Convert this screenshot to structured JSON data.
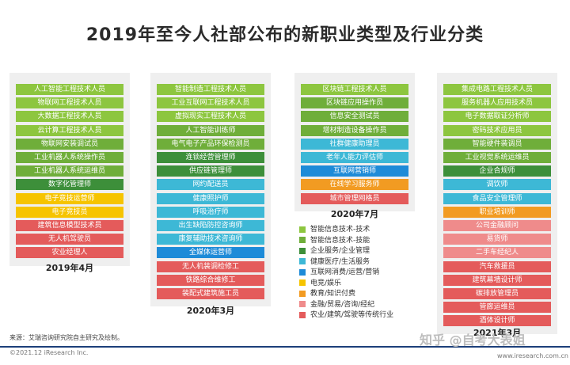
{
  "title": "2019年至今人社部公布的新职业类型及行业分类",
  "colors": {
    "智能信息技术-技术": "#8dc63f",
    "智能信息技术-技能": "#6fae3a",
    "企业服务/企业管理": "#3d8f3a",
    "健康医疗/生活服务": "#3db8d6",
    "互联网消费/运营/营销": "#1e8bd8",
    "电竞/娱乐": "#f6c400",
    "教育/知识付费": "#f29b22",
    "金融/贸易/咨询/经纪": "#ef8b8b",
    "农业/建筑/驾驶等传统行业": "#e45b5b"
  },
  "chart_data": [
    {
      "label": "2019年4月",
      "items": [
        {
          "name": "人工智能工程技术人员",
          "cat": "智能信息技术-技术"
        },
        {
          "name": "物联网工程技术人员",
          "cat": "智能信息技术-技术"
        },
        {
          "name": "大数据工程技术人员",
          "cat": "智能信息技术-技术"
        },
        {
          "name": "云计算工程技术人员",
          "cat": "智能信息技术-技术"
        },
        {
          "name": "物联网安装调试员",
          "cat": "智能信息技术-技能"
        },
        {
          "name": "工业机器人系统操作员",
          "cat": "智能信息技术-技能"
        },
        {
          "name": "工业机器人系统运维员",
          "cat": "智能信息技术-技能"
        },
        {
          "name": "数字化管理师",
          "cat": "企业服务/企业管理"
        },
        {
          "name": "电子竞技运营师",
          "cat": "电竞/娱乐"
        },
        {
          "name": "电子竞技员",
          "cat": "电竞/娱乐"
        },
        {
          "name": "建筑信息模型技术员",
          "cat": "农业/建筑/驾驶等传统行业"
        },
        {
          "name": "无人机驾驶员",
          "cat": "农业/建筑/驾驶等传统行业"
        },
        {
          "name": "农业经理人",
          "cat": "农业/建筑/驾驶等传统行业"
        }
      ]
    },
    {
      "label": "2020年3月",
      "items": [
        {
          "name": "智能制造工程技术人员",
          "cat": "智能信息技术-技术"
        },
        {
          "name": "工业互联网工程技术人员",
          "cat": "智能信息技术-技术"
        },
        {
          "name": "虚拟现实工程技术人员",
          "cat": "智能信息技术-技术"
        },
        {
          "name": "人工智能训练师",
          "cat": "智能信息技术-技能"
        },
        {
          "name": "电气电子产品环保检测员",
          "cat": "智能信息技术-技能"
        },
        {
          "name": "连锁经营管理师",
          "cat": "企业服务/企业管理"
        },
        {
          "name": "供应链管理师",
          "cat": "企业服务/企业管理"
        },
        {
          "name": "网约配送员",
          "cat": "健康医疗/生活服务"
        },
        {
          "name": "健康照护师",
          "cat": "健康医疗/生活服务"
        },
        {
          "name": "呼吸治疗师",
          "cat": "健康医疗/生活服务"
        },
        {
          "name": "出生缺陷防控咨询师",
          "cat": "健康医疗/生活服务"
        },
        {
          "name": "康复辅助技术咨询师",
          "cat": "健康医疗/生活服务"
        },
        {
          "name": "全媒体运营师",
          "cat": "互联网消费/运营/营销"
        },
        {
          "name": "无人机装调检修工",
          "cat": "农业/建筑/驾驶等传统行业"
        },
        {
          "name": "铁路综合维修工",
          "cat": "农业/建筑/驾驶等传统行业"
        },
        {
          "name": "装配式建筑施工员",
          "cat": "农业/建筑/驾驶等传统行业"
        }
      ]
    },
    {
      "label": "2020年7月",
      "items": [
        {
          "name": "区块链工程技术人员",
          "cat": "智能信息技术-技术"
        },
        {
          "name": "区块链应用操作员",
          "cat": "智能信息技术-技能"
        },
        {
          "name": "信息安全测试员",
          "cat": "智能信息技术-技能"
        },
        {
          "name": "增材制造设备操作员",
          "cat": "智能信息技术-技能"
        },
        {
          "name": "社群健康助理员",
          "cat": "健康医疗/生活服务"
        },
        {
          "name": "老年人能力评估师",
          "cat": "健康医疗/生活服务"
        },
        {
          "name": "互联网营销师",
          "cat": "互联网消费/运营/营销"
        },
        {
          "name": "在线学习服务师",
          "cat": "教育/知识付费"
        },
        {
          "name": "城市管理网格员",
          "cat": "农业/建筑/驾驶等传统行业"
        }
      ]
    },
    {
      "label": "2021年3月",
      "items": [
        {
          "name": "集成电路工程技术人员",
          "cat": "智能信息技术-技术"
        },
        {
          "name": "服务机器人应用技术员",
          "cat": "智能信息技术-技术"
        },
        {
          "name": "电子数据取证分析师",
          "cat": "智能信息技术-技术"
        },
        {
          "name": "密码技术应用员",
          "cat": "智能信息技术-技术"
        },
        {
          "name": "智能硬件装调员",
          "cat": "智能信息技术-技能"
        },
        {
          "name": "工业视觉系统运维员",
          "cat": "智能信息技术-技能"
        },
        {
          "name": "企业合规师",
          "cat": "企业服务/企业管理"
        },
        {
          "name": "调饮师",
          "cat": "健康医疗/生活服务"
        },
        {
          "name": "食品安全管理师",
          "cat": "健康医疗/生活服务"
        },
        {
          "name": "职业培训师",
          "cat": "教育/知识付费"
        },
        {
          "name": "公司金融顾问",
          "cat": "金融/贸易/咨询/经纪"
        },
        {
          "name": "易货师",
          "cat": "金融/贸易/咨询/经纪"
        },
        {
          "name": "二手车经纪人",
          "cat": "金融/贸易/咨询/经纪"
        },
        {
          "name": "汽车救援员",
          "cat": "农业/建筑/驾驶等传统行业"
        },
        {
          "name": "建筑幕墙设计师",
          "cat": "农业/建筑/驾驶等传统行业"
        },
        {
          "name": "碳排放管理员",
          "cat": "农业/建筑/驾驶等传统行业"
        },
        {
          "name": "管廊运维员",
          "cat": "农业/建筑/驾驶等传统行业"
        },
        {
          "name": "酒体设计师",
          "cat": "农业/建筑/驾驶等传统行业"
        }
      ]
    }
  ],
  "legend": [
    "智能信息技术-技术",
    "智能信息技术-技能",
    "企业服务/企业管理",
    "健康医疗/生活服务",
    "互联网消费/运营/营销",
    "电竞/娱乐",
    "教育/知识付费",
    "金融/贸易/咨询/经纪",
    "农业/建筑/驾驶等传统行业"
  ],
  "source": "来源：艾瑞咨询研究院自主研究及绘制。",
  "copyright": "©2021.12 iResearch Inc.",
  "site": "www.iresearch.com.cn",
  "watermark": "知乎 @自考大表姐"
}
